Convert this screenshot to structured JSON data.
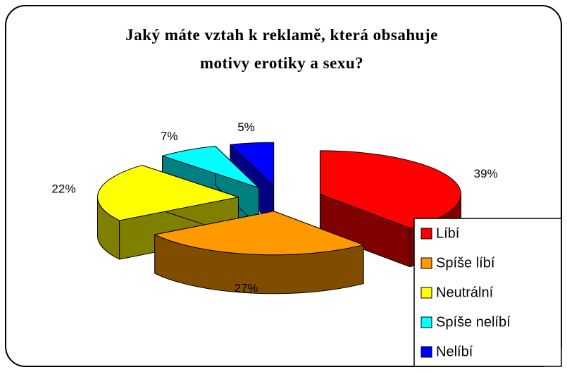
{
  "chart_data": {
    "type": "pie3d",
    "title": "Jaký máte vztah k reklamě, která obsahuje motivy erotiky a sexu?",
    "categories": [
      "Líbí",
      "Spíše líbí",
      "Neutrální",
      "Spíše nelíbí",
      "Nelíbí"
    ],
    "values": [
      39,
      27,
      22,
      7,
      5
    ],
    "value_labels": [
      "39%",
      "27%",
      "22%",
      "7%",
      "5%"
    ],
    "colors": [
      "#ff0000",
      "#ff9900",
      "#ffff00",
      "#00ffff",
      "#0000ff"
    ],
    "legend": "lower right"
  }
}
